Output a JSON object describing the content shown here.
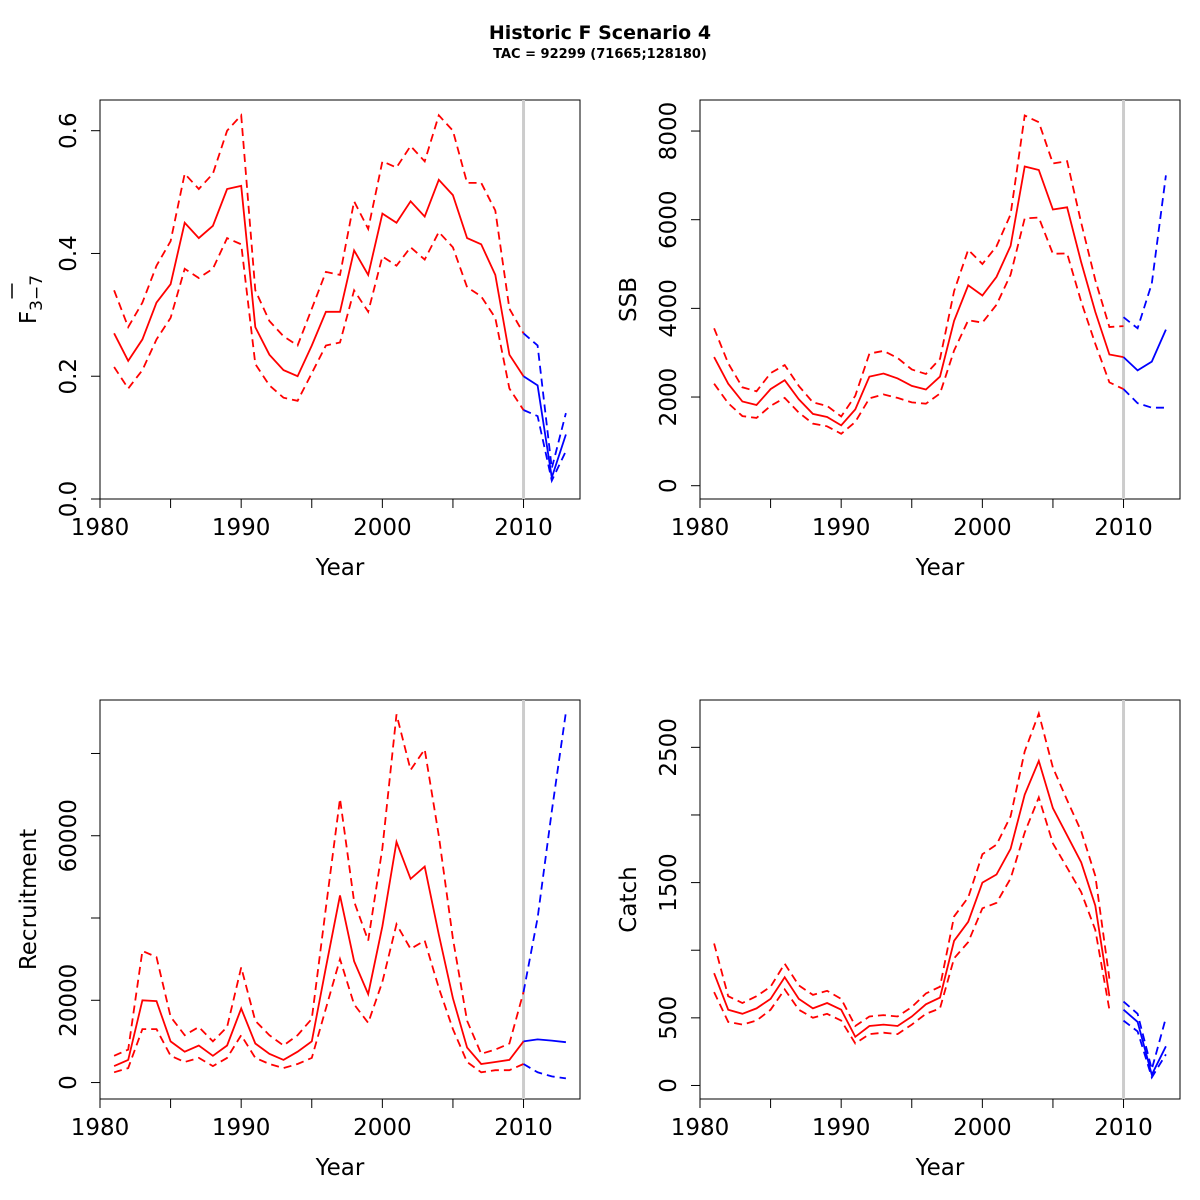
{
  "figure": {
    "title": "Historic F Scenario 4",
    "subtitle": "TAC = 92299 (71665;128180)"
  },
  "colors": {
    "historic": "#ff0000",
    "forecast": "#0000ff",
    "divider": "#cccccc"
  },
  "chart_data": [
    {
      "id": "fbar",
      "type": "line",
      "xlabel": "Year",
      "ylabel_main": "F",
      "ylabel_sub": "3−7",
      "xlim": [
        1980,
        2014
      ],
      "ylim": [
        0,
        0.65
      ],
      "xticks": [
        1980,
        1990,
        2000,
        2010
      ],
      "yticks": [
        0.0,
        0.2,
        0.4,
        0.6
      ],
      "ytick_labels": [
        "0.0",
        "0.2",
        "0.4",
        "0.6"
      ],
      "divider_x": 2010,
      "historic": {
        "x": [
          1981,
          1982,
          1983,
          1984,
          1985,
          1986,
          1987,
          1988,
          1989,
          1990,
          1991,
          1992,
          1993,
          1994,
          1995,
          1996,
          1997,
          1998,
          1999,
          2000,
          2001,
          2002,
          2003,
          2004,
          2005,
          2006,
          2007,
          2008,
          2009,
          2010
        ],
        "mid": [
          0.27,
          0.225,
          0.26,
          0.32,
          0.35,
          0.45,
          0.425,
          0.445,
          0.505,
          0.51,
          0.28,
          0.235,
          0.21,
          0.2,
          0.25,
          0.305,
          0.305,
          0.405,
          0.365,
          0.465,
          0.45,
          0.485,
          0.46,
          0.52,
          0.495,
          0.425,
          0.415,
          0.365,
          0.235,
          0.2
        ],
        "upper": [
          0.34,
          0.28,
          0.32,
          0.38,
          0.42,
          0.53,
          0.505,
          0.53,
          0.6,
          0.625,
          0.34,
          0.29,
          0.265,
          0.25,
          0.31,
          0.37,
          0.365,
          0.485,
          0.44,
          0.55,
          0.54,
          0.575,
          0.55,
          0.625,
          0.6,
          0.515,
          0.515,
          0.47,
          0.31,
          0.27
        ],
        "lower": [
          0.215,
          0.18,
          0.21,
          0.26,
          0.295,
          0.375,
          0.36,
          0.375,
          0.425,
          0.415,
          0.22,
          0.185,
          0.165,
          0.16,
          0.205,
          0.25,
          0.255,
          0.34,
          0.305,
          0.395,
          0.38,
          0.41,
          0.39,
          0.435,
          0.41,
          0.345,
          0.33,
          0.295,
          0.18,
          0.145
        ]
      },
      "forecast": {
        "x": [
          2010,
          2011,
          2012,
          2013
        ],
        "mid": [
          0.2,
          0.185,
          0.035,
          0.105
        ],
        "upper": [
          0.27,
          0.25,
          0.05,
          0.14
        ],
        "lower": [
          0.145,
          0.135,
          0.03,
          0.078
        ]
      }
    },
    {
      "id": "ssb",
      "type": "line",
      "xlabel": "Year",
      "ylabel": "SSB",
      "xlim": [
        1980,
        2014
      ],
      "ylim": [
        -300,
        8700
      ],
      "xticks": [
        1980,
        1990,
        2000,
        2010
      ],
      "yticks": [
        0,
        2000,
        4000,
        6000,
        8000
      ],
      "ytick_labels": [
        "0",
        "2000",
        "4000",
        "6000",
        "8000"
      ],
      "divider_x": 2010,
      "historic": {
        "x": [
          1981,
          1982,
          1983,
          1984,
          1985,
          1986,
          1987,
          1988,
          1989,
          1990,
          1991,
          1992,
          1993,
          1994,
          1995,
          1996,
          1997,
          1998,
          1999,
          2000,
          2001,
          2002,
          2003,
          2004,
          2005,
          2006,
          2007,
          2008,
          2009,
          2010
        ],
        "mid": [
          2900,
          2300,
          1900,
          1820,
          2180,
          2380,
          1950,
          1620,
          1550,
          1360,
          1720,
          2460,
          2530,
          2420,
          2250,
          2170,
          2460,
          3720,
          4520,
          4290,
          4710,
          5410,
          7200,
          7120,
          6230,
          6280,
          5040,
          3920,
          2960,
          2900
        ],
        "upper": [
          3550,
          2760,
          2220,
          2130,
          2540,
          2720,
          2250,
          1880,
          1800,
          1560,
          2030,
          2980,
          3040,
          2880,
          2620,
          2520,
          2860,
          4390,
          5320,
          5000,
          5400,
          6120,
          8350,
          8200,
          7270,
          7320,
          5930,
          4640,
          3580,
          3600
        ],
        "lower": [
          2300,
          1860,
          1570,
          1530,
          1800,
          1980,
          1650,
          1400,
          1340,
          1170,
          1440,
          1970,
          2060,
          1980,
          1880,
          1850,
          2080,
          3050,
          3730,
          3680,
          4080,
          4760,
          6030,
          6050,
          5230,
          5240,
          4150,
          3200,
          2330,
          2180
        ]
      },
      "forecast": {
        "x": [
          2010,
          2011,
          2012,
          2013
        ],
        "mid": [
          2900,
          2600,
          2800,
          3520
        ],
        "upper": [
          3800,
          3550,
          4560,
          7000
        ],
        "lower": [
          2180,
          1860,
          1760,
          1760
        ]
      }
    },
    {
      "id": "recruitment",
      "type": "line",
      "xlabel": "Year",
      "ylabel": "Recruitment",
      "xlim": [
        1980,
        2014
      ],
      "ylim": [
        -4000,
        93000
      ],
      "xticks": [
        1980,
        1990,
        2000,
        2010
      ],
      "yticks": [
        0,
        20000,
        40000,
        60000,
        80000
      ],
      "ytick_labels": [
        "0",
        "20000",
        "",
        "60000",
        ""
      ],
      "divider_x": 2010,
      "historic": {
        "x": [
          1981,
          1982,
          1983,
          1984,
          1985,
          1986,
          1987,
          1988,
          1989,
          1990,
          1991,
          1992,
          1993,
          1994,
          1995,
          1996,
          1997,
          1998,
          1999,
          2000,
          2001,
          2002,
          2003,
          2004,
          2005,
          2006,
          2007,
          2008,
          2009,
          2010
        ],
        "mid": [
          4000,
          5500,
          20000,
          19800,
          10000,
          7500,
          9000,
          6500,
          9000,
          18000,
          9500,
          7000,
          5500,
          7500,
          10000,
          28000,
          45500,
          29500,
          21500,
          38000,
          58500,
          49500,
          52500,
          36000,
          20500,
          8500,
          4500,
          5000,
          5500,
          10000
        ],
        "upper": [
          6500,
          8000,
          32000,
          30500,
          16000,
          11500,
          13500,
          10000,
          13500,
          28000,
          15000,
          11500,
          9000,
          11500,
          15500,
          42500,
          69000,
          44000,
          34500,
          57000,
          89500,
          76000,
          81000,
          60000,
          35000,
          15000,
          7000,
          8000,
          9500,
          22000
        ],
        "lower": [
          2500,
          3500,
          13000,
          13000,
          6500,
          5000,
          6000,
          4000,
          6000,
          11500,
          6000,
          4500,
          3500,
          4500,
          6000,
          18000,
          30000,
          19000,
          14500,
          24500,
          38500,
          32500,
          34500,
          23000,
          13000,
          5000,
          2500,
          3000,
          3000,
          4500
        ]
      },
      "forecast": {
        "x": [
          2010,
          2011,
          2012,
          2013
        ],
        "mid": [
          10000,
          10500,
          10200,
          9800
        ],
        "upper": [
          22000,
          40000,
          66000,
          90000
        ],
        "lower": [
          4500,
          2500,
          1500,
          1000
        ]
      }
    },
    {
      "id": "catch",
      "type": "line",
      "xlabel": "Year",
      "ylabel": "Catch",
      "xlim": [
        1980,
        2014
      ],
      "ylim": [
        -100,
        2850
      ],
      "xticks": [
        1980,
        1990,
        2000,
        2010
      ],
      "yticks": [
        0,
        500,
        1000,
        1500,
        2000,
        2500
      ],
      "ytick_labels": [
        "0",
        "500",
        "",
        "1500",
        "",
        "2500"
      ],
      "divider_x": 2010,
      "historic": {
        "x": [
          1981,
          1982,
          1983,
          1984,
          1985,
          1986,
          1987,
          1988,
          1989,
          1990,
          1991,
          1992,
          1993,
          1994,
          1995,
          1996,
          1997,
          1998,
          1999,
          2000,
          2001,
          2002,
          2003,
          2004,
          2005,
          2006,
          2007,
          2008,
          2009
        ],
        "mid": [
          830,
          560,
          530,
          570,
          640,
          800,
          640,
          570,
          610,
          560,
          360,
          440,
          450,
          440,
          510,
          600,
          650,
          1070,
          1210,
          1500,
          1560,
          1750,
          2150,
          2400,
          2050,
          1850,
          1650,
          1330,
          660
        ],
        "upper": [
          1050,
          660,
          610,
          660,
          730,
          900,
          740,
          670,
          700,
          640,
          440,
          510,
          520,
          510,
          580,
          680,
          730,
          1250,
          1390,
          1710,
          1780,
          1990,
          2470,
          2750,
          2350,
          2110,
          1880,
          1550,
          790
        ],
        "lower": [
          690,
          470,
          450,
          480,
          560,
          710,
          560,
          500,
          530,
          480,
          310,
          380,
          390,
          380,
          450,
          530,
          570,
          940,
          1060,
          1310,
          1350,
          1530,
          1870,
          2130,
          1790,
          1610,
          1430,
          1150,
          560
        ]
      },
      "forecast": {
        "x": [
          2010,
          2011,
          2012,
          2013
        ],
        "mid": [
          560,
          470,
          80,
          290
        ],
        "upper": [
          620,
          530,
          120,
          500
        ],
        "lower": [
          480,
          400,
          60,
          230
        ]
      }
    }
  ]
}
